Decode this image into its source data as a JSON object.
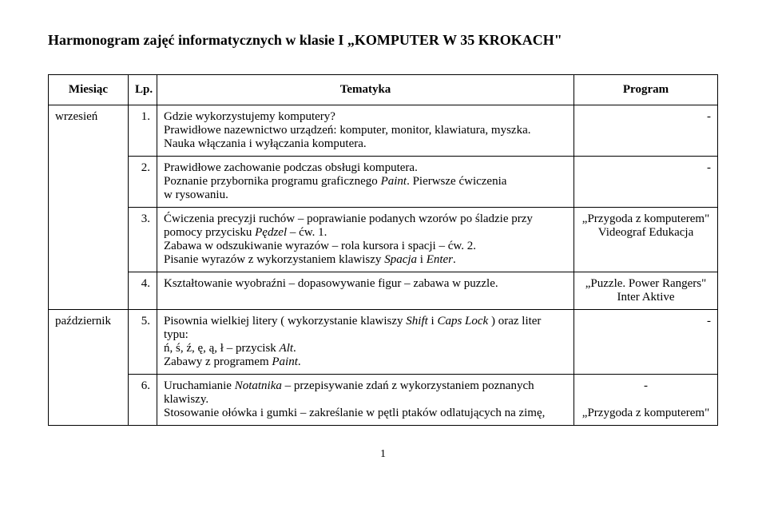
{
  "title": "Harmonogram zajęć informatycznych w klasie I „KOMPUTER  W  35  KROKACH\"",
  "columns": {
    "month": "Miesiąc",
    "lp": "Lp.",
    "topic": "Tematyka",
    "program": "Program"
  },
  "rows": [
    {
      "month": "wrzesień",
      "items": [
        {
          "lp": "1.",
          "topic_html": "Gdzie wykorzystujemy komputery?\nPrawidłowe nazewnictwo urządzeń: komputer, monitor, klawiatura, myszka.\nNauka włączania i wyłączania komputera.",
          "program": "-"
        },
        {
          "lp": "2.",
          "topic_html": "Prawidłowe zachowanie podczas obsługi komputera.\nPoznanie przybornika programu graficznego <i>Paint</i>. Pierwsze ćwiczenia\nw rysowaniu.",
          "program": "-"
        },
        {
          "lp": "3.",
          "topic_html": "Ćwiczenia precyzji ruchów – poprawianie podanych wzorów po śladzie przy\npomocy przycisku <i>Pędzel</i> – ćw. 1.\nZabawa w odszukiwanie wyrazów – rola kursora i spacji – ćw. 2.\nPisanie wyrazów z wykorzystaniem klawiszy <i>Spacja</i> i <i>Enter</i>.",
          "program": "„Przygoda z komputerem\"\nVideograf Edukacja"
        },
        {
          "lp": "4.",
          "topic_html": "Kształtowanie wyobraźni – dopasowywanie figur – zabawa w puzzle.",
          "program": "„Puzzle. Power Rangers\"\nInter Aktive"
        }
      ]
    },
    {
      "month": "październik",
      "items": [
        {
          "lp": "5.",
          "topic_html": "Pisownia wielkiej litery ( wykorzystanie klawiszy <i>Shift</i> i <i>Caps Lock</i> ) oraz liter typu:\nń, ś, ź, ę, ą, ł – przycisk <i>Alt</i>.\nZabawy z programem <i>Paint</i>.",
          "program": "-"
        },
        {
          "lp": "6.",
          "topic_html": "Uruchamianie <i>Notatnika</i> – przepisywanie zdań z wykorzystaniem poznanych\nklawiszy.\nStosowanie ołówka i gumki – zakreślanie w pętli ptaków odlatujących na zimę,",
          "program": "-\n\n„Przygoda z komputerem\""
        }
      ]
    }
  ],
  "page_number": "1"
}
